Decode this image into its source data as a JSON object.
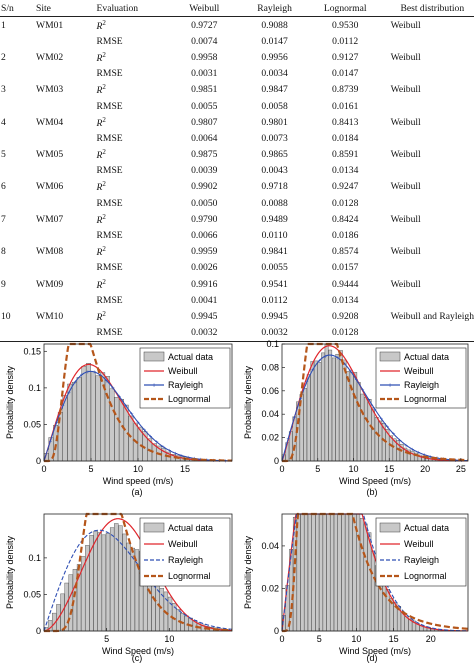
{
  "table": {
    "headers": [
      "S/n",
      "Site",
      "Evaluation",
      "Weibull",
      "Rayleigh",
      "Lognormal",
      "Best distribution"
    ],
    "rows": [
      {
        "sn": "1",
        "site": "WM01",
        "r2": [
          "0.9727",
          "0.9088",
          "0.9530"
        ],
        "rmse": [
          "0.0074",
          "0.0147",
          "0.0112"
        ],
        "best": "Weibull"
      },
      {
        "sn": "2",
        "site": "WM02",
        "r2": [
          "0.9958",
          "0.9956",
          "0.9127"
        ],
        "rmse": [
          "0.0031",
          "0.0034",
          "0.0147"
        ],
        "best": "Weibull"
      },
      {
        "sn": "3",
        "site": "WM03",
        "r2": [
          "0.9851",
          "0.9847",
          "0.8739"
        ],
        "rmse": [
          "0.0055",
          "0.0058",
          "0.0161"
        ],
        "best": "Weibull"
      },
      {
        "sn": "4",
        "site": "WM04",
        "r2": [
          "0.9807",
          "0.9801",
          "0.8413"
        ],
        "rmse": [
          "0.0064",
          "0.0073",
          "0.0184"
        ],
        "best": "Weibull"
      },
      {
        "sn": "5",
        "site": "WM05",
        "r2": [
          "0.9875",
          "0.9865",
          "0.8591"
        ],
        "rmse": [
          "0.0039",
          "0.0043",
          "0.0134"
        ],
        "best": "Weibull"
      },
      {
        "sn": "6",
        "site": "WM06",
        "r2": [
          "0.9902",
          "0.9718",
          "0.9247"
        ],
        "rmse": [
          "0.0050",
          "0.0088",
          "0.0128"
        ],
        "best": "Weibull"
      },
      {
        "sn": "7",
        "site": "WM07",
        "r2": [
          "0.9790",
          "0.9489",
          "0.8424"
        ],
        "rmse": [
          "0.0066",
          "0.0110",
          "0.0186"
        ],
        "best": "Weibull"
      },
      {
        "sn": "8",
        "site": "WM08",
        "r2": [
          "0.9959",
          "0.9841",
          "0.8574"
        ],
        "rmse": [
          "0.0026",
          "0.0055",
          "0.0157"
        ],
        "best": "Weibull"
      },
      {
        "sn": "9",
        "site": "WM09",
        "r2": [
          "0.9916",
          "0.9541",
          "0.9444"
        ],
        "rmse": [
          "0.0041",
          "0.0112",
          "0.0134"
        ],
        "best": "Weibull"
      },
      {
        "sn": "10",
        "site": "WM10",
        "r2": [
          "0.9945",
          "0.9945",
          "0.9208"
        ],
        "rmse": [
          "0.0032",
          "0.0032",
          "0.0128"
        ],
        "best": "Weibull and Rayleigh"
      }
    ],
    "r2_base": "R",
    "r2_sup": "2",
    "rmse_label": "RMSE"
  },
  "colors": {
    "actual": "#555555",
    "weibull": "#e0262c",
    "rayleigh": "#2f4fb4",
    "lognormal": "#b5561a",
    "bars": "#c8c8c8"
  },
  "chart_data": [
    {
      "type": "bar",
      "panel": "(a)",
      "ylabel": "Probability density",
      "xlabel": "Wind speed (m/s)",
      "xlim": [
        0,
        20
      ],
      "ylim": [
        0,
        0.16
      ],
      "xticks": [
        0,
        5,
        10,
        15
      ],
      "yticks": [
        0,
        0.05,
        0.1,
        0.15
      ],
      "ytick_labels": [
        "0",
        "0.05",
        "0.1",
        "0.15"
      ],
      "xtick_labels": [
        "0",
        "5",
        "10",
        "15"
      ],
      "legend": [
        "Actual data",
        "Weibull",
        "Rayleigh",
        "Lognormal"
      ],
      "legend_styles": [
        "bar",
        "solid",
        "marker",
        "dashed"
      ],
      "legend_position": "top-right",
      "bar_width": 0.5,
      "fits": {
        "weibull": {
          "k": 2.05,
          "c": 6.6
        },
        "rayleigh": {
          "sigma": 4.95
        },
        "lognormal": {
          "mu": 1.53,
          "s": 0.5
        }
      }
    },
    {
      "type": "bar",
      "panel": "(b)",
      "ylabel": "Probability density",
      "xlabel": "Wind Speed (m/s)",
      "xlim": [
        0,
        26
      ],
      "ylim": [
        0,
        0.1
      ],
      "xticks": [
        0,
        5,
        10,
        15,
        20,
        25
      ],
      "yticks": [
        0,
        0.02,
        0.04,
        0.06,
        0.08,
        0.1
      ],
      "ytick_labels": [
        "0",
        "0.02",
        "0.04",
        "0.06",
        "0.08",
        "0.1"
      ],
      "xtick_labels": [
        "0",
        "5",
        "10",
        "15",
        "20",
        "25"
      ],
      "legend": [
        "Actual data",
        "Weibull",
        "Rayleigh",
        "Lognormal"
      ],
      "legend_styles": [
        "bar",
        "solid",
        "marker",
        "dashed"
      ],
      "legend_position": "top-right",
      "bar_width": 0.5,
      "fits": {
        "weibull": {
          "k": 2.1,
          "c": 9.0
        },
        "rayleigh": {
          "sigma": 6.7
        },
        "lognormal": {
          "mu": 1.9,
          "s": 0.5
        }
      }
    },
    {
      "type": "bar",
      "panel": "(c)",
      "ylabel": "Probability density",
      "xlabel": "Wind Speed (m/s)",
      "xlim": [
        0,
        15
      ],
      "ylim": [
        0,
        0.16
      ],
      "xticks": [
        5,
        10
      ],
      "yticks": [
        0,
        0.05,
        0.1
      ],
      "ytick_labels": [
        "0",
        "0.05",
        "0.1"
      ],
      "xtick_labels": [
        "5",
        "10"
      ],
      "legend": [
        "Actual data",
        "Weibull",
        "Rayleigh",
        "Lognormal"
      ],
      "legend_styles": [
        "bar",
        "solid",
        "dashdot",
        "dashed"
      ],
      "legend_position": "top-right",
      "bar_width": 0.33,
      "fits": {
        "weibull": {
          "k": 2.7,
          "c": 7.0
        },
        "rayleigh": {
          "sigma": 4.4
        },
        "lognormal": {
          "mu": 1.65,
          "s": 0.36
        }
      }
    },
    {
      "type": "bar",
      "panel": "(d)",
      "ylabel": "Probability density",
      "xlabel": "Wind Speed (m/s)",
      "xlim": [
        0,
        25
      ],
      "ylim": [
        0,
        0.055
      ],
      "xticks": [
        0,
        5,
        10,
        15,
        20
      ],
      "yticks": [
        0,
        0.02,
        0.04
      ],
      "ytick_labels": [
        "0",
        "0.02",
        "0.04"
      ],
      "xtick_labels": [
        "0",
        "5",
        "10",
        "15",
        "20"
      ],
      "legend": [
        "Actual data",
        "Weibull",
        "Rayleigh",
        "Lognormal"
      ],
      "legend_styles": [
        "bar",
        "solid",
        "dashdot",
        "dashed"
      ],
      "legend_position": "top-right",
      "bar_width": 0.5,
      "fits": {
        "weibull": {
          "k": 2.0,
          "c": 8.0
        },
        "rayleigh": {
          "sigma": 5.8
        },
        "lognormal": {
          "mu": 1.8,
          "s": 0.55
        }
      }
    }
  ]
}
